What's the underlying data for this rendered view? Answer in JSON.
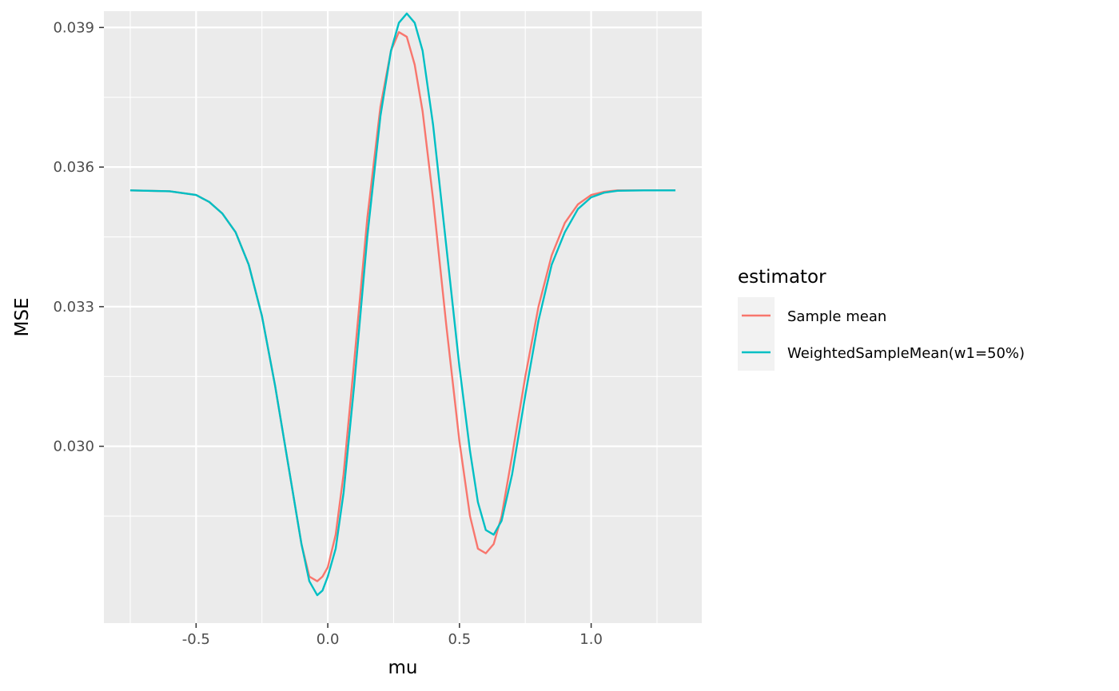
{
  "chart_data": {
    "type": "line",
    "xlabel": "mu",
    "ylabel": "MSE",
    "xlim": [
      -0.85,
      1.42
    ],
    "ylim": [
      0.0262,
      0.03935
    ],
    "x_ticks": [
      -0.5,
      0.0,
      0.5,
      1.0
    ],
    "x_tick_labels": [
      "-0.5",
      "0.0",
      "0.5",
      "1.0"
    ],
    "y_ticks": [
      0.03,
      0.033,
      0.036,
      0.039
    ],
    "y_tick_labels": [
      "0.030",
      "0.033",
      "0.036",
      "0.039"
    ],
    "grid": true,
    "panel_background": "#ebebeb",
    "legend": {
      "title": "estimator",
      "placement": "right"
    },
    "series": [
      {
        "name": "Sample mean",
        "color": "#F8766D",
        "x": [
          -0.75,
          -0.6,
          -0.5,
          -0.45,
          -0.4,
          -0.35,
          -0.3,
          -0.25,
          -0.2,
          -0.15,
          -0.1,
          -0.07,
          -0.04,
          -0.02,
          0.0,
          0.03,
          0.06,
          0.1,
          0.15,
          0.2,
          0.24,
          0.27,
          0.3,
          0.33,
          0.36,
          0.4,
          0.45,
          0.5,
          0.54,
          0.57,
          0.6,
          0.63,
          0.66,
          0.7,
          0.75,
          0.8,
          0.85,
          0.9,
          0.95,
          1.0,
          1.05,
          1.1,
          1.2,
          1.32
        ],
        "y": [
          0.0355,
          0.03548,
          0.0354,
          0.03525,
          0.035,
          0.0346,
          0.0339,
          0.0328,
          0.0313,
          0.0296,
          0.0279,
          0.0272,
          0.0271,
          0.0272,
          0.0274,
          0.0281,
          0.0294,
          0.0318,
          0.0349,
          0.0373,
          0.0385,
          0.0389,
          0.0388,
          0.0382,
          0.0372,
          0.0353,
          0.0326,
          0.0301,
          0.0285,
          0.0278,
          0.0277,
          0.0279,
          0.0285,
          0.0298,
          0.0315,
          0.033,
          0.0341,
          0.0348,
          0.0352,
          0.0354,
          0.03547,
          0.0355,
          0.0355,
          0.0355
        ]
      },
      {
        "name": "WeightedSampleMean(w1=50%)",
        "color": "#00BFC4",
        "x": [
          -0.75,
          -0.6,
          -0.5,
          -0.45,
          -0.4,
          -0.35,
          -0.3,
          -0.25,
          -0.2,
          -0.15,
          -0.1,
          -0.07,
          -0.04,
          -0.02,
          0.0,
          0.03,
          0.06,
          0.1,
          0.15,
          0.2,
          0.24,
          0.27,
          0.3,
          0.33,
          0.36,
          0.4,
          0.45,
          0.5,
          0.54,
          0.57,
          0.6,
          0.63,
          0.66,
          0.7,
          0.75,
          0.8,
          0.85,
          0.9,
          0.95,
          1.0,
          1.05,
          1.1,
          1.2,
          1.32
        ],
        "y": [
          0.0355,
          0.03548,
          0.0354,
          0.03525,
          0.035,
          0.0346,
          0.0339,
          0.0328,
          0.0313,
          0.0296,
          0.0279,
          0.0271,
          0.0268,
          0.0269,
          0.0272,
          0.0278,
          0.029,
          0.0313,
          0.0345,
          0.0371,
          0.0385,
          0.0391,
          0.0393,
          0.0391,
          0.0385,
          0.0369,
          0.0343,
          0.0317,
          0.0299,
          0.0288,
          0.0282,
          0.0281,
          0.0284,
          0.0294,
          0.0311,
          0.0327,
          0.0339,
          0.0346,
          0.0351,
          0.03535,
          0.03545,
          0.03549,
          0.0355,
          0.0355
        ]
      }
    ]
  }
}
